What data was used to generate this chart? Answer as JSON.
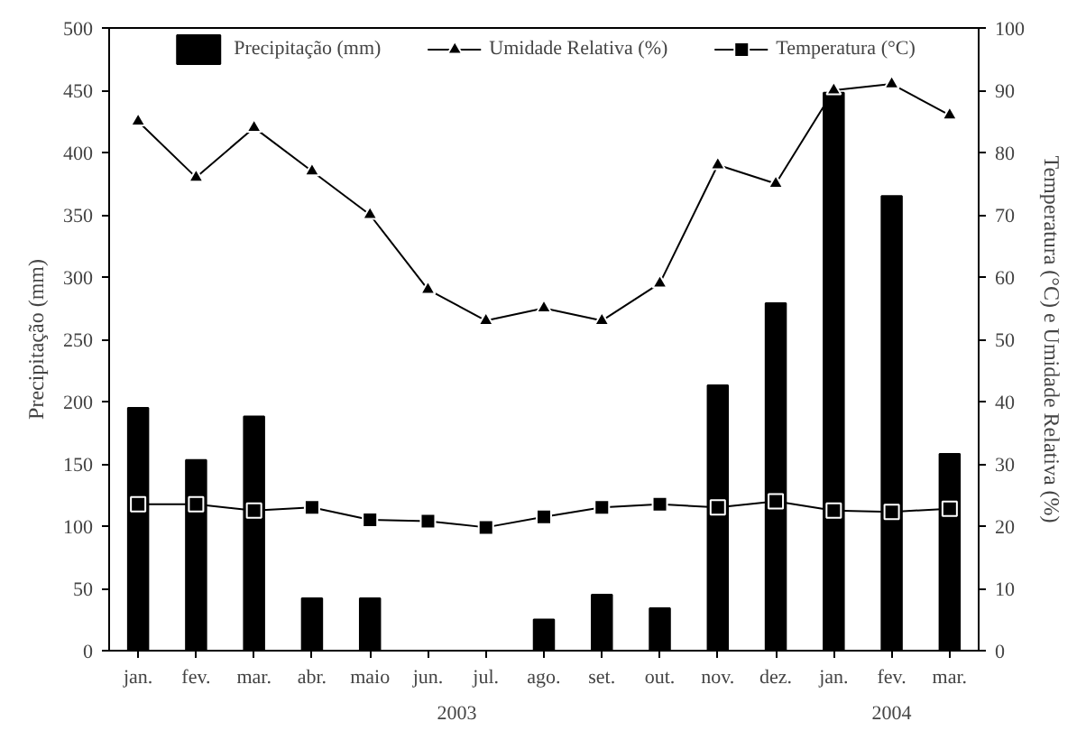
{
  "chart_data": {
    "type": "bar",
    "ylabel": "Precipitação (mm)",
    "y2label": "Temperatura (°C) e Umidade Relativa (%)",
    "categories": [
      "jan.",
      "fev.",
      "mar.",
      "abr.",
      "maio",
      "jun.",
      "jul.",
      "ago.",
      "set.",
      "out.",
      "nov.",
      "dez.",
      "jan.",
      "fev.",
      "mar."
    ],
    "series": [
      {
        "name": "Precipitação (mm)",
        "color": "#000000",
        "values": [
          195,
          153,
          188,
          42,
          42,
          0,
          0,
          25,
          45,
          34,
          213,
          279,
          448,
          365,
          158
        ]
      },
      {
        "name": "Umidade Relativa (%)",
        "type": "line",
        "axis": "y2",
        "marker": "triangle",
        "color": "#000000",
        "values": [
          85,
          76,
          84,
          77,
          70,
          58,
          53,
          55,
          53,
          59,
          78,
          75,
          90,
          91,
          86
        ]
      },
      {
        "name": "Temperatura (°C)",
        "type": "line",
        "axis": "y2",
        "marker": "square",
        "color": "#000000",
        "values": [
          23.5,
          23.5,
          22.5,
          23,
          21,
          20.8,
          19.8,
          21.5,
          23,
          23.5,
          23,
          24,
          22.5,
          22.3,
          22.8
        ]
      }
    ],
    "annotations": [
      "2003",
      "2004"
    ],
    "ylim": [
      0,
      500
    ],
    "yticks": [
      0,
      50,
      100,
      150,
      200,
      250,
      300,
      350,
      400,
      450,
      500
    ],
    "y2lim": [
      0,
      100
    ],
    "y2ticks": [
      0,
      10,
      20,
      30,
      40,
      50,
      60,
      70,
      80,
      90,
      100
    ],
    "grid": false,
    "legend": "top"
  }
}
